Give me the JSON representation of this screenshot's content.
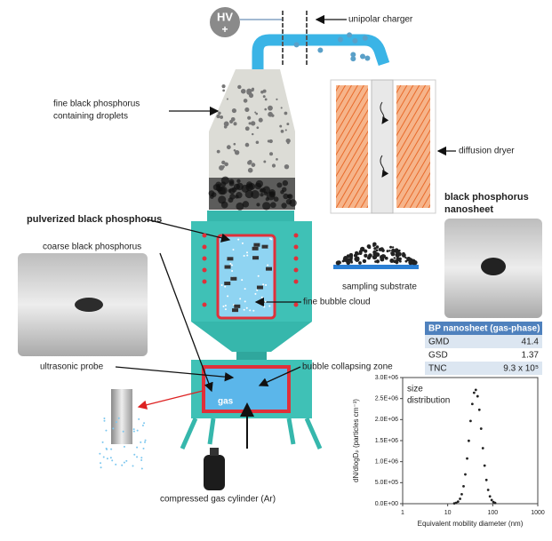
{
  "labels": {
    "hv": "HV",
    "hv_sign": "+",
    "unipolar_charger": "unipolar charger",
    "droplets": [
      "fine black phosphorus",
      "containing droplets"
    ],
    "diffusion_dryer": "diffusion dryer",
    "nanosheet": [
      "black phosphorus",
      "nanosheet"
    ],
    "pulverized": "pulverized black phosphorus",
    "coarse": "coarse black phosphorus",
    "sampling_substrate": "sampling substrate",
    "bubble_cloud": "fine bubble cloud",
    "ultrasonic_probe": "ultrasonic probe",
    "collapsing_zone": "bubble collapsing zone",
    "gas": "gas",
    "cylinder": "compressed gas cylinder (Ar)"
  },
  "table": {
    "header": "BP nanosheet (gas-phase)",
    "rows": [
      [
        "GMD",
        "41.4"
      ],
      [
        "GSD",
        "1.37"
      ],
      [
        "TNC",
        "9.3 x 10⁵"
      ]
    ]
  },
  "chart_data": {
    "type": "scatter",
    "annotation": [
      "size",
      "distribution"
    ],
    "x_label": "Equivalent mobility diameter (nm)",
    "y_label": "dN/dlogDₚ (particles cm⁻³)",
    "x": [
      14,
      15.4,
      17,
      18.8,
      20.5,
      22.5,
      24.6,
      27,
      29.4,
      32.2,
      35.2,
      38.5,
      42.1,
      46.1,
      50.4,
      55.2,
      60.4,
      66,
      72.3,
      79.1,
      86.6,
      94.7,
      103.6,
      113
    ],
    "values": [
      7000,
      19500,
      49600,
      116000,
      225000,
      414000,
      696000,
      1075000,
      1496000,
      1967000,
      2372000,
      2637000,
      2706000,
      2555000,
      2233000,
      1784000,
      1320000,
      906000,
      564000,
      328000,
      173000,
      86000,
      39000,
      17000
    ],
    "color": "#222222",
    "log_x": true,
    "xlim": [
      1,
      1000
    ],
    "xticks": [
      1,
      10,
      100,
      1000
    ],
    "ylim": [
      0,
      3000000
    ],
    "yticks": [
      {
        "value": 0,
        "label": "0.0E+00"
      },
      {
        "value": 500000,
        "label": "5.0E+05"
      },
      {
        "value": 1000000,
        "label": "1.0E+06"
      },
      {
        "value": 1500000,
        "label": "1.5E+06"
      },
      {
        "value": 2000000,
        "label": "2.0E+06"
      },
      {
        "value": 2500000,
        "label": "2.5E+06"
      },
      {
        "value": 3000000,
        "label": "3.0E+06"
      }
    ]
  }
}
